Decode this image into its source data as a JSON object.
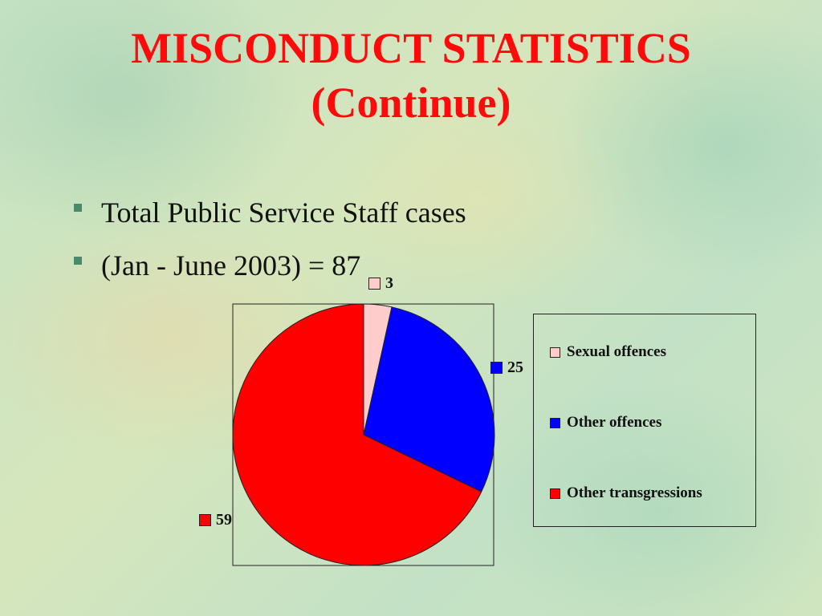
{
  "slide": {
    "title_line1": "MISCONDUCT STATISTICS",
    "title_line2": "(Continue)",
    "bullets": [
      "Total Public Service Staff cases",
      "(Jan - June 2003) = 87"
    ]
  },
  "chart_data": {
    "type": "pie",
    "categories": [
      "Sexual offences",
      "Other offences",
      "Other transgressions"
    ],
    "values": [
      3,
      25,
      59
    ],
    "colors": [
      "#ffcccc",
      "#0000ff",
      "#ff0000"
    ],
    "data_labels": [
      "3",
      "25",
      "59"
    ],
    "legend": "right",
    "start_angle_deg": 0,
    "direction": "clockwise"
  },
  "colors": {
    "title": "#ff0a0a",
    "bullet_marker": "#4a8a6a"
  }
}
